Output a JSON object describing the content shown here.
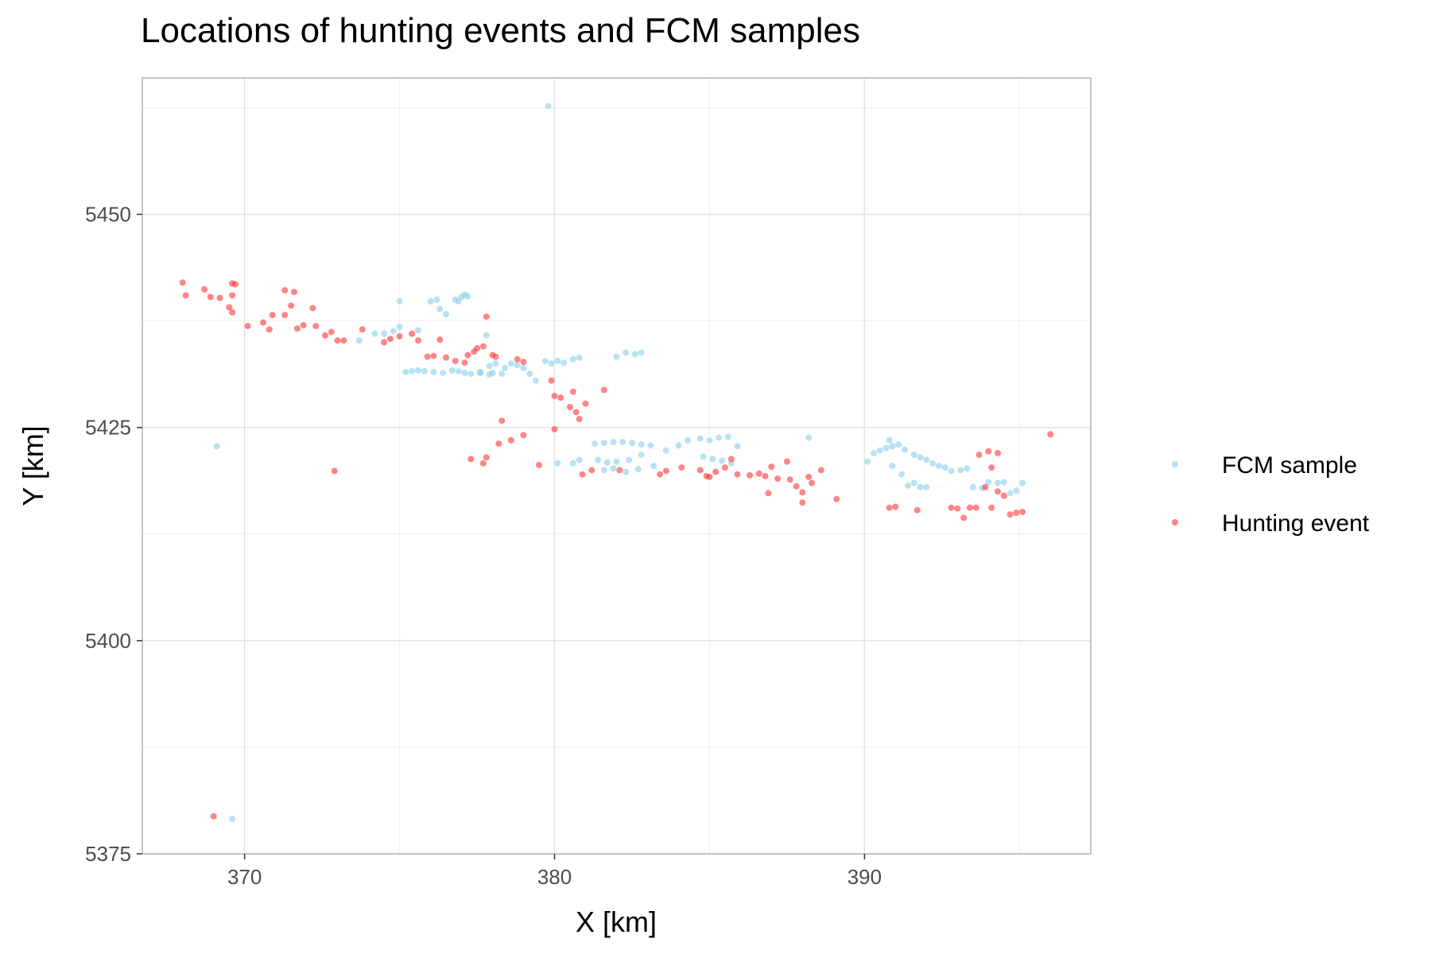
{
  "chart_data": {
    "type": "scatter",
    "title": "Locations of hunting events and FCM samples",
    "xlabel": "X [km]",
    "ylabel": "Y [km]",
    "xlim": [
      366.7,
      397.3
    ],
    "ylim": [
      5375,
      5466
    ],
    "xticks": [
      "370",
      "380",
      "390"
    ],
    "yticks": [
      "5375",
      "5400",
      "5425",
      "5450"
    ],
    "grid": true,
    "legend_position": "right",
    "series": [
      {
        "name": "FCM sample",
        "color": "#87ceeb",
        "points": [
          [
            379.8,
            5462.7
          ],
          [
            369.1,
            5422.8
          ],
          [
            369.6,
            5379.1
          ],
          [
            373.7,
            5435.2
          ],
          [
            374.2,
            5436.0
          ],
          [
            374.5,
            5436.0
          ],
          [
            374.8,
            5436.3
          ],
          [
            375.0,
            5436.8
          ],
          [
            375.0,
            5439.8
          ],
          [
            375.2,
            5431.5
          ],
          [
            375.4,
            5431.6
          ],
          [
            375.6,
            5431.7
          ],
          [
            375.8,
            5431.6
          ],
          [
            375.6,
            5436.4
          ],
          [
            376.1,
            5431.5
          ],
          [
            376.4,
            5431.4
          ],
          [
            376.7,
            5431.7
          ],
          [
            376.9,
            5431.6
          ],
          [
            377.1,
            5431.4
          ],
          [
            377.3,
            5431.3
          ],
          [
            377.6,
            5431.5
          ],
          [
            377.9,
            5431.2
          ],
          [
            377.6,
            5431.4
          ],
          [
            378.0,
            5431.4
          ],
          [
            376.0,
            5439.8
          ],
          [
            376.2,
            5440.0
          ],
          [
            376.3,
            5438.9
          ],
          [
            376.5,
            5438.3
          ],
          [
            376.8,
            5440.0
          ],
          [
            377.0,
            5440.3
          ],
          [
            377.1,
            5440.6
          ],
          [
            376.9,
            5439.8
          ],
          [
            377.2,
            5440.4
          ],
          [
            377.8,
            5435.8
          ],
          [
            377.9,
            5432.2
          ],
          [
            378.1,
            5432.5
          ],
          [
            378.3,
            5431.3
          ],
          [
            378.4,
            5432.0
          ],
          [
            378.6,
            5432.5
          ],
          [
            378.8,
            5432.3
          ],
          [
            379.0,
            5432.0
          ],
          [
            379.2,
            5431.3
          ],
          [
            379.4,
            5430.5
          ],
          [
            379.7,
            5432.8
          ],
          [
            379.9,
            5432.5
          ],
          [
            380.1,
            5432.8
          ],
          [
            380.3,
            5432.6
          ],
          [
            380.6,
            5433.0
          ],
          [
            380.8,
            5433.2
          ],
          [
            382.0,
            5433.3
          ],
          [
            382.3,
            5433.8
          ],
          [
            382.6,
            5433.6
          ],
          [
            382.8,
            5433.8
          ],
          [
            380.1,
            5420.8
          ],
          [
            380.6,
            5420.8
          ],
          [
            380.8,
            5421.2
          ],
          [
            381.3,
            5423.1
          ],
          [
            381.6,
            5423.2
          ],
          [
            381.9,
            5423.3
          ],
          [
            382.2,
            5423.3
          ],
          [
            382.5,
            5423.2
          ],
          [
            382.8,
            5423.0
          ],
          [
            383.1,
            5422.9
          ],
          [
            381.4,
            5421.2
          ],
          [
            381.7,
            5420.9
          ],
          [
            382.0,
            5421.0
          ],
          [
            382.4,
            5421.2
          ],
          [
            382.8,
            5421.8
          ],
          [
            381.6,
            5420.0
          ],
          [
            381.9,
            5420.2
          ],
          [
            382.3,
            5419.8
          ],
          [
            382.7,
            5420.1
          ],
          [
            383.2,
            5420.5
          ],
          [
            383.6,
            5422.3
          ],
          [
            384.0,
            5422.9
          ],
          [
            384.3,
            5423.5
          ],
          [
            384.7,
            5423.7
          ],
          [
            385.0,
            5423.5
          ],
          [
            385.3,
            5423.8
          ],
          [
            385.6,
            5423.9
          ],
          [
            384.8,
            5421.6
          ],
          [
            385.1,
            5421.3
          ],
          [
            385.4,
            5421.1
          ],
          [
            385.7,
            5420.8
          ],
          [
            385.9,
            5422.8
          ],
          [
            388.2,
            5423.8
          ],
          [
            390.1,
            5421.0
          ],
          [
            390.3,
            5422.0
          ],
          [
            390.5,
            5422.3
          ],
          [
            390.7,
            5422.6
          ],
          [
            390.9,
            5422.8
          ],
          [
            391.1,
            5423.0
          ],
          [
            391.3,
            5422.4
          ],
          [
            390.8,
            5423.5
          ],
          [
            390.9,
            5420.5
          ],
          [
            391.2,
            5419.5
          ],
          [
            391.4,
            5418.2
          ],
          [
            391.6,
            5418.5
          ],
          [
            391.8,
            5418.0
          ],
          [
            392.0,
            5418.0
          ],
          [
            391.6,
            5421.8
          ],
          [
            391.8,
            5421.5
          ],
          [
            392.0,
            5421.2
          ],
          [
            392.2,
            5420.8
          ],
          [
            392.4,
            5420.5
          ],
          [
            392.6,
            5420.3
          ],
          [
            392.8,
            5419.9
          ],
          [
            393.1,
            5420.0
          ],
          [
            393.3,
            5420.2
          ],
          [
            393.5,
            5418.0
          ],
          [
            393.8,
            5417.9
          ],
          [
            394.0,
            5418.6
          ],
          [
            394.3,
            5418.5
          ],
          [
            394.5,
            5418.6
          ],
          [
            394.7,
            5417.3
          ],
          [
            394.9,
            5417.6
          ],
          [
            395.1,
            5418.5
          ]
        ]
      },
      {
        "name": "Hunting event",
        "color": "#ff3333",
        "points": [
          [
            368.0,
            5442.0
          ],
          [
            368.1,
            5440.5
          ],
          [
            368.7,
            5441.2
          ],
          [
            368.9,
            5440.3
          ],
          [
            369.2,
            5440.2
          ],
          [
            369.6,
            5441.9
          ],
          [
            369.7,
            5441.8
          ],
          [
            369.6,
            5440.5
          ],
          [
            369.5,
            5439.1
          ],
          [
            369.6,
            5438.5
          ],
          [
            370.1,
            5436.9
          ],
          [
            370.6,
            5437.3
          ],
          [
            370.8,
            5436.5
          ],
          [
            370.9,
            5438.2
          ],
          [
            371.3,
            5441.1
          ],
          [
            371.3,
            5438.2
          ],
          [
            371.5,
            5439.3
          ],
          [
            371.6,
            5440.9
          ],
          [
            371.7,
            5436.6
          ],
          [
            371.9,
            5437.0
          ],
          [
            372.2,
            5439.0
          ],
          [
            372.3,
            5436.9
          ],
          [
            372.6,
            5435.8
          ],
          [
            372.8,
            5436.2
          ],
          [
            373.0,
            5435.2
          ],
          [
            373.2,
            5435.2
          ],
          [
            373.8,
            5436.5
          ],
          [
            374.5,
            5435.0
          ],
          [
            374.7,
            5435.4
          ],
          [
            375.0,
            5435.7
          ],
          [
            375.4,
            5436.0
          ],
          [
            375.6,
            5435.2
          ],
          [
            375.9,
            5433.3
          ],
          [
            376.1,
            5433.4
          ],
          [
            376.3,
            5435.3
          ],
          [
            376.5,
            5433.2
          ],
          [
            376.8,
            5432.8
          ],
          [
            377.1,
            5432.6
          ],
          [
            377.2,
            5433.5
          ],
          [
            377.4,
            5433.9
          ],
          [
            377.5,
            5434.3
          ],
          [
            377.7,
            5434.5
          ],
          [
            377.8,
            5438.0
          ],
          [
            378.0,
            5433.5
          ],
          [
            378.1,
            5433.3
          ],
          [
            377.3,
            5421.3
          ],
          [
            377.7,
            5420.8
          ],
          [
            377.8,
            5421.5
          ],
          [
            378.2,
            5423.1
          ],
          [
            378.3,
            5425.8
          ],
          [
            378.6,
            5423.5
          ],
          [
            379.0,
            5424.1
          ],
          [
            378.8,
            5433.0
          ],
          [
            379.0,
            5432.7
          ],
          [
            379.5,
            5420.6
          ],
          [
            379.9,
            5430.5
          ],
          [
            380.0,
            5428.7
          ],
          [
            380.2,
            5428.5
          ],
          [
            380.5,
            5427.4
          ],
          [
            380.7,
            5426.8
          ],
          [
            380.6,
            5429.2
          ],
          [
            380.8,
            5426.0
          ],
          [
            381.0,
            5427.8
          ],
          [
            381.6,
            5429.4
          ],
          [
            380.0,
            5424.8
          ],
          [
            380.9,
            5419.5
          ],
          [
            381.2,
            5420.0
          ],
          [
            382.1,
            5420.0
          ],
          [
            383.4,
            5419.5
          ],
          [
            383.6,
            5419.9
          ],
          [
            384.1,
            5420.3
          ],
          [
            384.7,
            5420.0
          ],
          [
            384.9,
            5419.3
          ],
          [
            385.0,
            5419.2
          ],
          [
            385.2,
            5419.8
          ],
          [
            385.5,
            5420.3
          ],
          [
            385.7,
            5421.3
          ],
          [
            385.9,
            5419.5
          ],
          [
            386.3,
            5419.4
          ],
          [
            386.6,
            5419.6
          ],
          [
            386.8,
            5419.3
          ],
          [
            387.0,
            5420.4
          ],
          [
            387.2,
            5419.0
          ],
          [
            387.5,
            5421.0
          ],
          [
            387.6,
            5418.9
          ],
          [
            387.8,
            5418.1
          ],
          [
            388.0,
            5417.4
          ],
          [
            388.2,
            5419.2
          ],
          [
            388.3,
            5418.5
          ],
          [
            388.6,
            5420.0
          ],
          [
            389.1,
            5416.6
          ],
          [
            386.9,
            5417.3
          ],
          [
            388.0,
            5416.2
          ],
          [
            372.9,
            5419.9
          ],
          [
            369.0,
            5379.4
          ],
          [
            390.8,
            5415.6
          ],
          [
            391.0,
            5415.7
          ],
          [
            391.7,
            5415.3
          ],
          [
            392.8,
            5415.6
          ],
          [
            393.0,
            5415.5
          ],
          [
            393.2,
            5414.4
          ],
          [
            393.4,
            5415.6
          ],
          [
            393.6,
            5415.6
          ],
          [
            393.7,
            5421.8
          ],
          [
            393.9,
            5418.0
          ],
          [
            394.1,
            5420.3
          ],
          [
            394.0,
            5422.2
          ],
          [
            394.3,
            5422.0
          ],
          [
            394.1,
            5415.6
          ],
          [
            394.3,
            5417.5
          ],
          [
            394.5,
            5417.0
          ],
          [
            394.7,
            5414.8
          ],
          [
            394.9,
            5415.0
          ],
          [
            395.1,
            5415.1
          ],
          [
            396.0,
            5424.2
          ]
        ]
      }
    ]
  }
}
